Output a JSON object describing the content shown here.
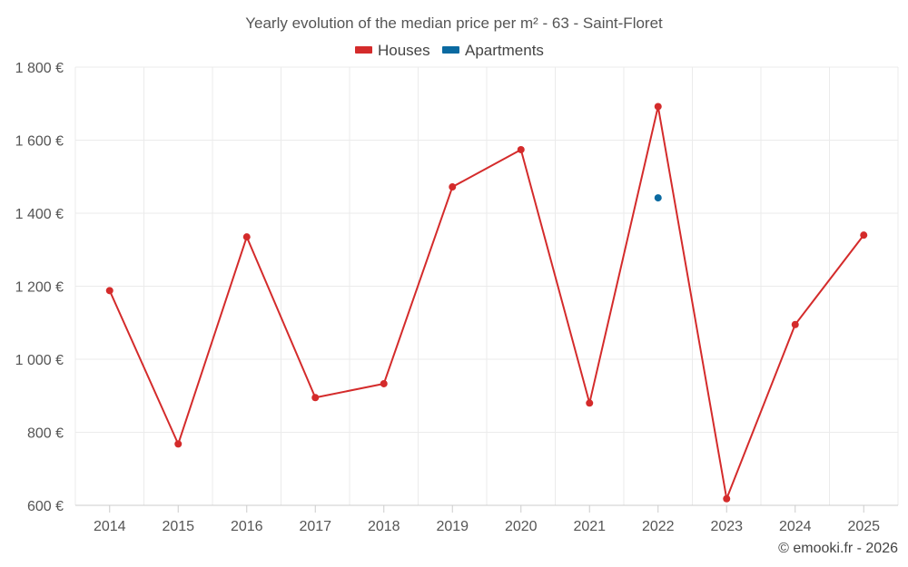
{
  "chart_data": {
    "type": "line",
    "title": "Yearly evolution of the median price per m² - 63 - Saint-Floret",
    "categories": [
      "2014",
      "2015",
      "2016",
      "2017",
      "2018",
      "2019",
      "2020",
      "2021",
      "2022",
      "2023",
      "2024",
      "2025"
    ],
    "series": [
      {
        "name": "Houses",
        "color": "#d42b2b",
        "values": [
          1188,
          768,
          1335,
          895,
          933,
          1472,
          1574,
          880,
          1692,
          618,
          1095,
          1340
        ]
      },
      {
        "name": "Apartments",
        "color": "#0a6aa1",
        "values": [
          null,
          null,
          null,
          null,
          null,
          null,
          null,
          null,
          1442,
          null,
          null,
          null
        ]
      }
    ],
    "ylim": [
      600,
      1800
    ],
    "yticks": [
      600,
      800,
      1000,
      1200,
      1400,
      1600,
      1800
    ],
    "ytick_labels": [
      "600 €",
      "800 €",
      "1 000 €",
      "1 200 €",
      "1 400 €",
      "1 600 €",
      "1 800 €"
    ],
    "xlabel": "",
    "ylabel": "",
    "legend_position": "top-center",
    "grid": true
  },
  "credit": "© emooki.fr - 2026"
}
